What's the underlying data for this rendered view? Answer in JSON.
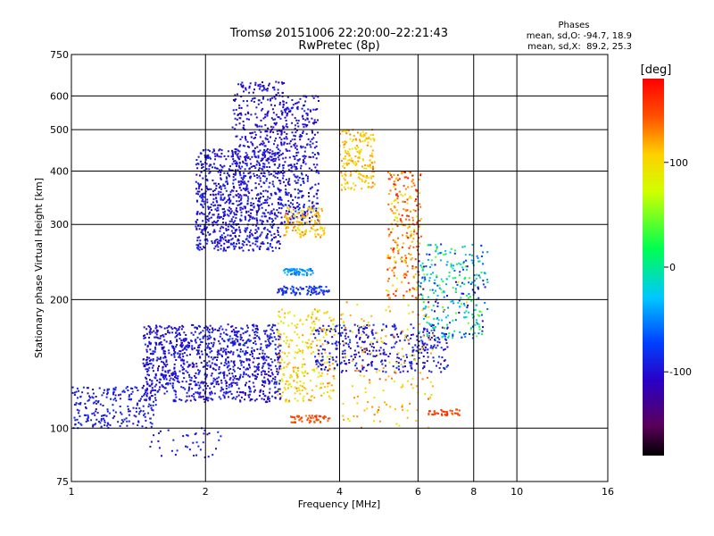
{
  "chart_data": {
    "type": "scatter",
    "title": "Tromsø 20151006 22:20:00–22:21:43",
    "subtitle": "RwPretec (8p)",
    "stats": {
      "heading": "Phases",
      "line1": "mean, sd,O: -94.7, 18.9",
      "line2": "mean, sd,X:  89.2, 25.3"
    },
    "xlabel": "Frequency [MHz]",
    "ylabel": "Stationary phase Virtual Height [km]",
    "x_scale": "log",
    "y_scale": "log",
    "xlim": [
      1,
      16
    ],
    "ylim": [
      75,
      750
    ],
    "x_ticks": [
      1,
      2,
      4,
      6,
      8,
      10,
      16
    ],
    "y_ticks": [
      75,
      100,
      200,
      300,
      400,
      500,
      600,
      750
    ],
    "grid": true,
    "colorbar": {
      "label": "[deg]",
      "range": [
        -180,
        180
      ],
      "ticks": [
        100,
        0,
        -100
      ]
    },
    "clusters": [
      {
        "fmin": 1.0,
        "fmax": 1.55,
        "hmin": 100,
        "hmax": 125,
        "phase": -95,
        "spread": 12,
        "n": 220
      },
      {
        "fmin": 1.45,
        "fmax": 2.95,
        "hmin": 115,
        "hmax": 175,
        "phase": -100,
        "spread": 15,
        "n": 1100
      },
      {
        "fmin": 1.9,
        "fmax": 2.95,
        "hmin": 260,
        "hmax": 450,
        "phase": -100,
        "spread": 15,
        "n": 900
      },
      {
        "fmin": 2.3,
        "fmax": 3.0,
        "hmin": 420,
        "hmax": 650,
        "phase": -105,
        "spread": 12,
        "n": 260
      },
      {
        "fmin": 2.95,
        "fmax": 3.6,
        "hmin": 300,
        "hmax": 600,
        "phase": -100,
        "spread": 15,
        "n": 380
      },
      {
        "fmin": 3.0,
        "fmax": 3.7,
        "hmin": 280,
        "hmax": 330,
        "phase": 110,
        "spread": 25,
        "n": 130
      },
      {
        "fmin": 2.9,
        "fmax": 3.8,
        "hmin": 205,
        "hmax": 215,
        "phase": -85,
        "spread": 15,
        "n": 90
      },
      {
        "fmin": 3.0,
        "fmax": 3.5,
        "hmin": 228,
        "hmax": 236,
        "phase": -50,
        "spread": 15,
        "n": 60
      },
      {
        "fmin": 2.9,
        "fmax": 3.9,
        "hmin": 115,
        "hmax": 190,
        "phase": 100,
        "spread": 30,
        "n": 260
      },
      {
        "fmin": 3.5,
        "fmax": 7.0,
        "hmin": 135,
        "hmax": 175,
        "phase": -100,
        "spread": 20,
        "n": 380
      },
      {
        "fmin": 4.0,
        "fmax": 4.8,
        "hmin": 360,
        "hmax": 500,
        "phase": 110,
        "spread": 25,
        "n": 180
      },
      {
        "fmin": 5.1,
        "fmax": 6.1,
        "hmin": 200,
        "hmax": 400,
        "phase": 130,
        "spread": 50,
        "n": 260
      },
      {
        "fmin": 6.0,
        "fmax": 8.6,
        "hmin": 160,
        "hmax": 270,
        "phase": -30,
        "spread": 80,
        "n": 300
      },
      {
        "fmin": 3.1,
        "fmax": 3.8,
        "hmin": 103,
        "hmax": 107,
        "phase": 150,
        "spread": 15,
        "n": 55
      },
      {
        "fmin": 6.3,
        "fmax": 7.5,
        "hmin": 107,
        "hmax": 111,
        "phase": 155,
        "spread": 15,
        "n": 40
      },
      {
        "fmin": 4.0,
        "fmax": 6.5,
        "hmin": 100,
        "hmax": 200,
        "phase": 110,
        "spread": 30,
        "n": 150
      },
      {
        "fmin": 1.5,
        "fmax": 2.2,
        "hmin": 85,
        "hmax": 100,
        "phase": -95,
        "spread": 15,
        "n": 40
      }
    ]
  }
}
